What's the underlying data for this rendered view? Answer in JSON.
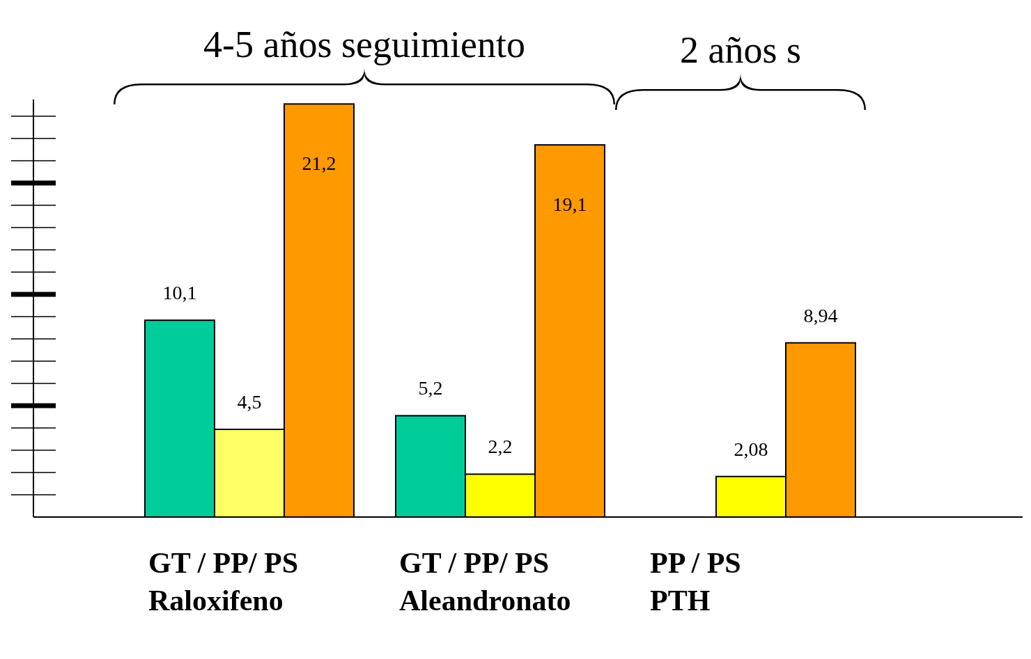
{
  "chart_data": {
    "type": "bar",
    "categories": [
      "GT / PP/ PS\nRaloxifeno",
      "GT / PP/ PS\nAleandronato",
      "PP / PS\nPTH"
    ],
    "series": [
      {
        "color": "#00cc99",
        "values": [
          10.1,
          5.2,
          null
        ],
        "value_labels": [
          "10,1",
          "5,2",
          null
        ]
      },
      {
        "colors": [
          "#ffff66",
          "#ffff00",
          "#ffff00"
        ],
        "values": [
          4.5,
          2.2,
          2.08
        ],
        "value_labels": [
          "4,5",
          "2,2",
          "2,08"
        ]
      },
      {
        "color": "#ff9900",
        "values": [
          21.2,
          19.1,
          8.94
        ],
        "value_labels": [
          "21,2",
          "19,1",
          "8,94"
        ]
      }
    ],
    "tick_labels": "x",
    "annotations": [
      "4-5 años seguimiento",
      "2 años s"
    ]
  }
}
